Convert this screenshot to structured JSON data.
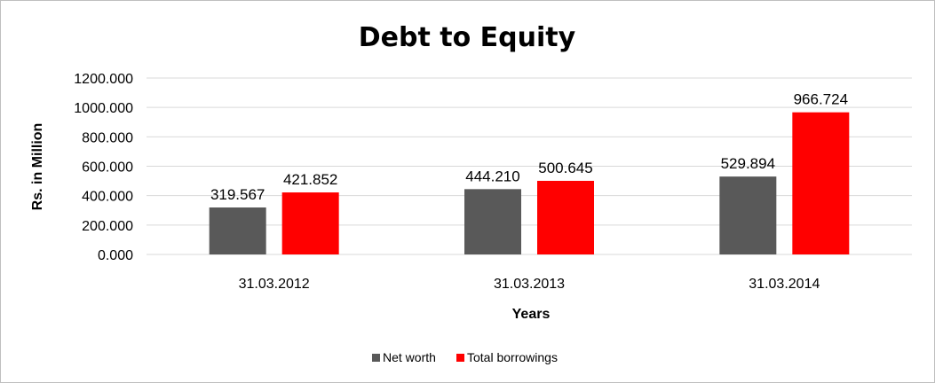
{
  "chart_data": {
    "type": "bar",
    "title": "Debt to Equity",
    "xlabel": "Years",
    "ylabel": "Rs. in Million",
    "categories": [
      "31.03.2012",
      "31.03.2013",
      "31.03.2014"
    ],
    "series": [
      {
        "name": "Net worth",
        "color": "#595959",
        "values": [
          319.567,
          444.21,
          529.894
        ],
        "labels": [
          "319.567",
          "444.210",
          "529.894"
        ]
      },
      {
        "name": "Total borrowings",
        "color": "#ff0000",
        "values": [
          421.852,
          500.645,
          966.724
        ],
        "labels": [
          "421.852",
          "500.645",
          "966.724"
        ]
      }
    ],
    "ylim": [
      0,
      1200
    ],
    "yticks": [
      "0.000",
      "200.000",
      "400.000",
      "600.000",
      "800.000",
      "1000.000",
      "1200.000"
    ],
    "grid": true,
    "legend": "bottom"
  }
}
